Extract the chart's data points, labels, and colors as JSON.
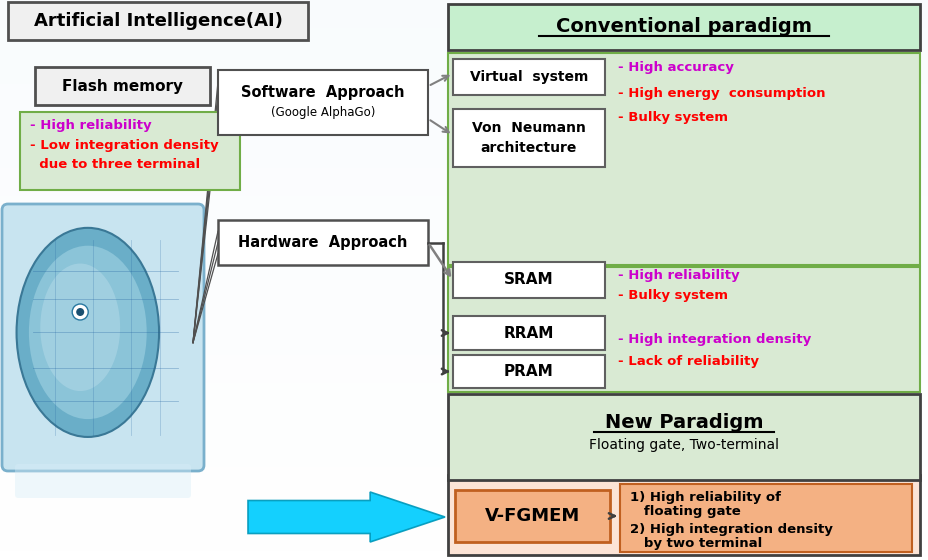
{
  "title": "Artificial Intelligence(AI)",
  "bg_color": "#ffffff",
  "conv_paradigm_title": "Conventional paradigm",
  "new_paradigm_title": "New Paradigm",
  "new_paradigm_subtitle": "Floating gate, Two-terminal",
  "software_line1": "Software  Approach",
  "software_line2": "(Google AlphaGo)",
  "hardware_label": "Hardware  Approach",
  "virtual_system": "Virtual  system",
  "von_neumann_l1": "Von  Neumann",
  "von_neumann_l2": "architecture",
  "sram": "SRAM",
  "rram": "RRAM",
  "pram": "PRAM",
  "flash_memory": "Flash memory",
  "vfgmem": "V-FGMEM",
  "vfgmem_p1": "1) High reliability of",
  "vfgmem_p2": "   floating gate",
  "vfgmem_p3": "2) High integration density",
  "vfgmem_p4": "   by two terminal",
  "color_light_green_bg": "#d9ead3",
  "color_green_border": "#70ad47",
  "color_new_paradigm_bg": "#d9ead3",
  "color_vfgmem_outer": "#fce4d6",
  "color_vfgmem_box": "#f4b183",
  "color_magenta": "#cc00cc",
  "color_red": "#ff0000",
  "color_cyan_arrow": "#00ccff",
  "color_arrow": "#808080",
  "color_conv_bg": "#c6efce",
  "color_box_border": "#606060"
}
